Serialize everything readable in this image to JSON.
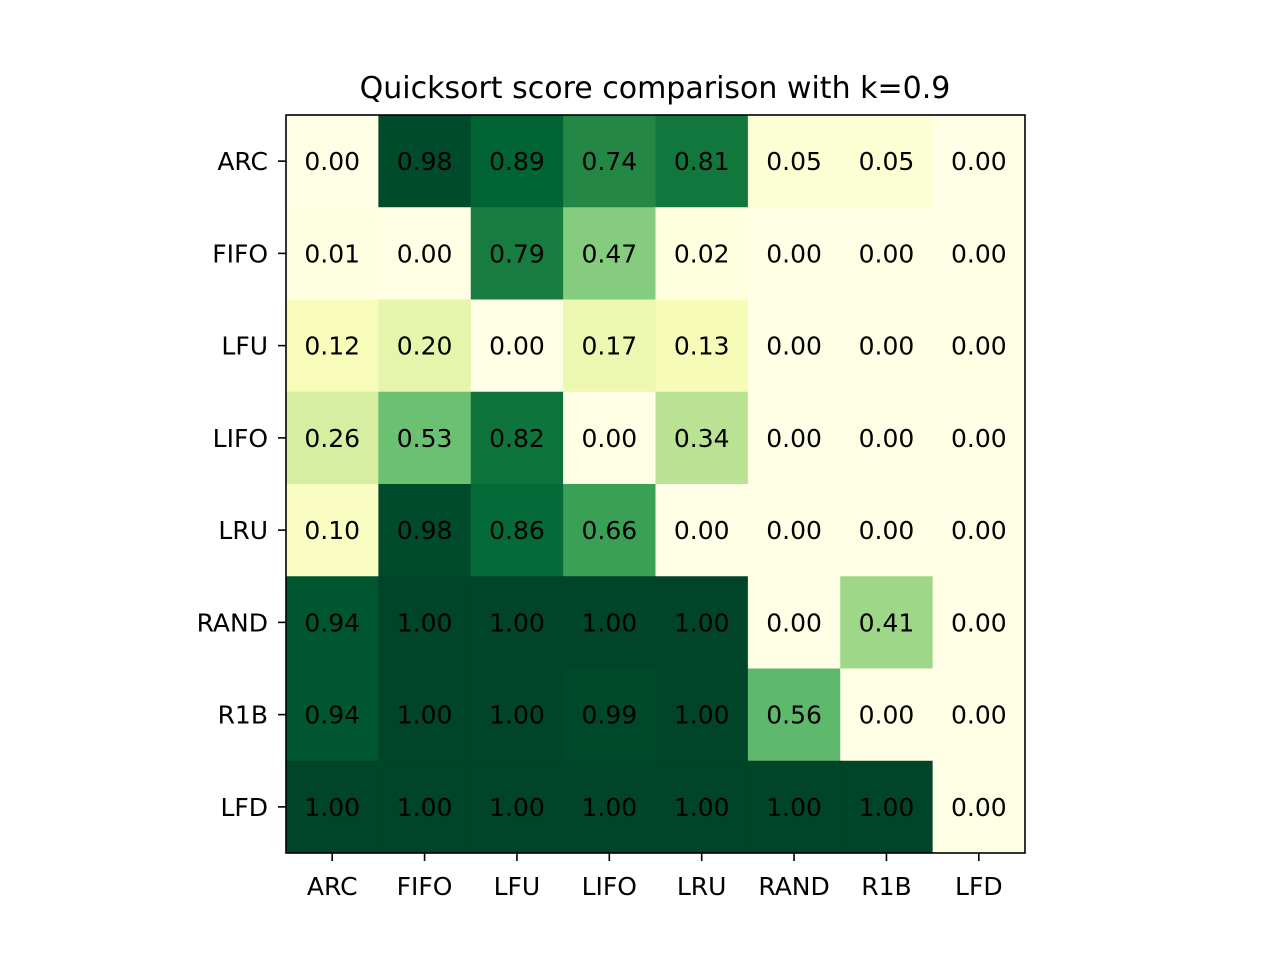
{
  "chart_data": {
    "type": "heatmap",
    "title": "Quicksort score comparison with k=0.9",
    "x_labels": [
      "ARC",
      "FIFO",
      "LFU",
      "LIFO",
      "LRU",
      "RAND",
      "R1B",
      "LFD"
    ],
    "y_labels": [
      "ARC",
      "FIFO",
      "LFU",
      "LIFO",
      "LRU",
      "RAND",
      "R1B",
      "LFD"
    ],
    "values": [
      [
        0.0,
        0.98,
        0.89,
        0.74,
        0.81,
        0.05,
        0.05,
        0.0
      ],
      [
        0.01,
        0.0,
        0.79,
        0.47,
        0.02,
        0.0,
        0.0,
        0.0
      ],
      [
        0.12,
        0.2,
        0.0,
        0.17,
        0.13,
        0.0,
        0.0,
        0.0
      ],
      [
        0.26,
        0.53,
        0.82,
        0.0,
        0.34,
        0.0,
        0.0,
        0.0
      ],
      [
        0.1,
        0.98,
        0.86,
        0.66,
        0.0,
        0.0,
        0.0,
        0.0
      ],
      [
        0.94,
        1.0,
        1.0,
        1.0,
        1.0,
        0.0,
        0.41,
        0.0
      ],
      [
        0.94,
        1.0,
        1.0,
        0.99,
        1.0,
        0.56,
        0.0,
        0.0
      ],
      [
        1.0,
        1.0,
        1.0,
        1.0,
        1.0,
        1.0,
        1.0,
        0.0
      ]
    ],
    "value_range": [
      0,
      1
    ],
    "colormap": "YlGn",
    "grid": false
  }
}
